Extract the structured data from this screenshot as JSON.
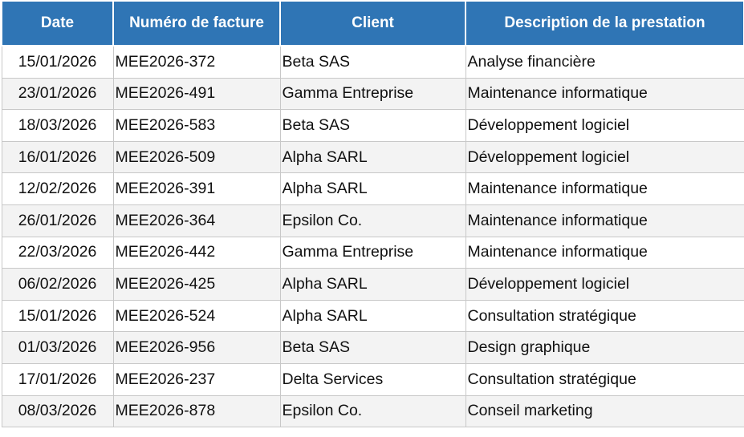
{
  "table": {
    "header": [
      "Date",
      "Numéro de facture",
      "Client",
      "Description de la prestation"
    ],
    "rows": [
      [
        "15/01/2026",
        "MEE2026-372",
        "Beta SAS",
        "Analyse financière"
      ],
      [
        "23/01/2026",
        "MEE2026-491",
        "Gamma Entreprise",
        "Maintenance informatique"
      ],
      [
        "18/03/2026",
        "MEE2026-583",
        "Beta SAS",
        "Développement logiciel"
      ],
      [
        "16/01/2026",
        "MEE2026-509",
        "Alpha SARL",
        "Développement logiciel"
      ],
      [
        "12/02/2026",
        "MEE2026-391",
        "Alpha SARL",
        "Maintenance informatique"
      ],
      [
        "26/01/2026",
        "MEE2026-364",
        "Epsilon Co.",
        "Maintenance informatique"
      ],
      [
        "22/03/2026",
        "MEE2026-442",
        "Gamma Entreprise",
        "Maintenance informatique"
      ],
      [
        "06/02/2026",
        "MEE2026-425",
        "Alpha SARL",
        "Développement logiciel"
      ],
      [
        "15/01/2026",
        "MEE2026-524",
        "Alpha SARL",
        "Consultation stratégique"
      ],
      [
        "01/03/2026",
        "MEE2026-956",
        "Beta SAS",
        "Design graphique"
      ],
      [
        "17/01/2026",
        "MEE2026-237",
        "Delta Services",
        "Consultation stratégique"
      ],
      [
        "08/03/2026",
        "MEE2026-878",
        "Epsilon Co.",
        "Conseil marketing"
      ]
    ]
  }
}
